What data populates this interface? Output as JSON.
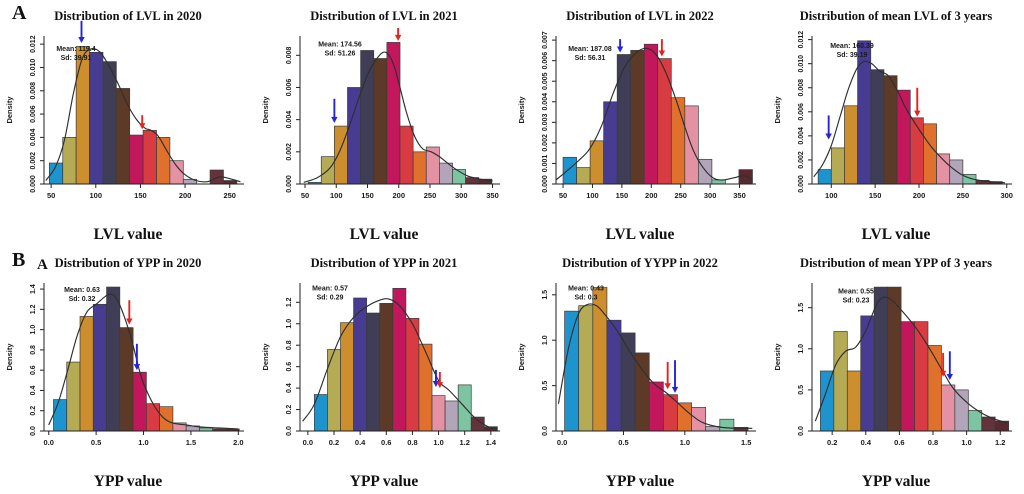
{
  "figure": {
    "row_a_label": "A",
    "row_b_label": "B",
    "sub_label_b": "A"
  },
  "colors": {
    "palette": [
      "#1e94cf",
      "#b5ab55",
      "#cd8e2e",
      "#473c92",
      "#403d56",
      "#5d3a28",
      "#c2175b",
      "#d93b43",
      "#e0712d",
      "#e492a3",
      "#b2a4b9",
      "#7cc4a2",
      "#63323a",
      "#5a2930"
    ],
    "curve": "#2f2f2f",
    "axis": "#222222",
    "bar_stroke": "#3b3b3b",
    "arrow_blue": "#2424d8",
    "arrow_red": "#e42320",
    "text": "#1a1a1a"
  },
  "chart_data": [
    {
      "type": "bar",
      "title": "Distribution of  LVL in 2020",
      "xlabel": "LVL value",
      "ylabel": "Density",
      "mean_label": "Mean: 119.4",
      "sd_label": "Sd: 39.91",
      "ann": [
        0.16,
        0.1
      ],
      "bin_start": 48,
      "bin_width": 15,
      "values": [
        0.0018,
        0.004,
        0.0118,
        0.0113,
        0.0105,
        0.0082,
        0.0042,
        0.0046,
        0.004,
        0.002,
        0.0004,
        0,
        0.0012,
        0.0003
      ],
      "xlim": [
        42,
        266
      ],
      "ylim": [
        0,
        0.0127
      ],
      "xticks": [
        50,
        100,
        150,
        200,
        250
      ],
      "xtick_labels": [
        "50",
        "100",
        "150",
        "200",
        "250"
      ],
      "yticks": [
        0,
        0.002,
        0.004,
        0.006,
        0.008,
        0.01,
        0.012
      ],
      "ytick_labels": [
        "0.000",
        "0.002",
        "0.004",
        "0.006",
        "0.008",
        "0.010",
        "0.012"
      ],
      "curve": [
        [
          44,
          0.0003
        ],
        [
          55,
          0.0015
        ],
        [
          65,
          0.0038
        ],
        [
          75,
          0.0078
        ],
        [
          85,
          0.0108
        ],
        [
          95,
          0.0116
        ],
        [
          105,
          0.0113
        ],
        [
          115,
          0.0101
        ],
        [
          125,
          0.0086
        ],
        [
          135,
          0.0069
        ],
        [
          145,
          0.0056
        ],
        [
          155,
          0.0048
        ],
        [
          162,
          0.0046
        ],
        [
          170,
          0.0041
        ],
        [
          180,
          0.0028
        ],
        [
          190,
          0.0016
        ],
        [
          200,
          0.0008
        ],
        [
          212,
          0.0003
        ],
        [
          225,
          0.0002
        ],
        [
          238,
          0.0006
        ],
        [
          248,
          0.0005
        ],
        [
          262,
          0.0002
        ]
      ],
      "arrows": [
        {
          "color": "blue",
          "x": 84,
          "y_from": 0.014,
          "y_to": 0.0121
        },
        {
          "color": "red",
          "x": 152,
          "y_from": 0.0059,
          "y_to": 0.0047
        }
      ]
    },
    {
      "type": "bar",
      "title": "Distribution of  LVL in 2021",
      "xlabel": "LVL value",
      "ylabel": "Density",
      "mean_label": "Mean: 174.56",
      "sd_label": "Sd: 51.26",
      "ann": [
        0.2,
        0.07
      ],
      "bin_start": 55,
      "bin_width": 21,
      "values": [
        0.0001,
        0.0017,
        0.0036,
        0.006,
        0.0083,
        0.0078,
        0.0088,
        0.0036,
        0.002,
        0.0023,
        0.0013,
        0.0009,
        0.0004,
        0.0003
      ],
      "xlim": [
        42,
        362
      ],
      "ylim": [
        0,
        0.0092
      ],
      "xticks": [
        50,
        100,
        150,
        200,
        250,
        300,
        350
      ],
      "xtick_labels": [
        "50",
        "100",
        "150",
        "200",
        "250",
        "300",
        "350"
      ],
      "yticks": [
        0,
        0.002,
        0.004,
        0.006,
        0.008
      ],
      "ytick_labels": [
        "0.000",
        "0.002",
        "0.004",
        "0.006",
        "0.008"
      ],
      "curve": [
        [
          48,
          0.0001
        ],
        [
          70,
          0.0004
        ],
        [
          90,
          0.001
        ],
        [
          105,
          0.002
        ],
        [
          120,
          0.0035
        ],
        [
          135,
          0.0052
        ],
        [
          150,
          0.0068
        ],
        [
          165,
          0.0078
        ],
        [
          178,
          0.0082
        ],
        [
          190,
          0.0076
        ],
        [
          200,
          0.0063
        ],
        [
          212,
          0.0045
        ],
        [
          225,
          0.003
        ],
        [
          238,
          0.0022
        ],
        [
          252,
          0.002
        ],
        [
          265,
          0.0017
        ],
        [
          278,
          0.0013
        ],
        [
          292,
          0.0009
        ],
        [
          310,
          0.0005
        ],
        [
          330,
          0.0003
        ],
        [
          350,
          0.0002
        ]
      ],
      "arrows": [
        {
          "color": "blue",
          "x": 97,
          "y_from": 0.0053,
          "y_to": 0.0038
        },
        {
          "color": "red",
          "x": 199,
          "y_from": 0.0097,
          "y_to": 0.0089
        }
      ]
    },
    {
      "type": "bar",
      "title": "Distribution of  LVL in 2022",
      "xlabel": "LVL value",
      "ylabel": "Density",
      "mean_label": "Mean: 187.08",
      "sd_label": "Sd: 56.31",
      "ann": [
        0.17,
        0.1
      ],
      "bin_start": 50,
      "bin_width": 23,
      "values": [
        0.0013,
        0.0008,
        0.0021,
        0.004,
        0.0063,
        0.0065,
        0.0068,
        0.0061,
        0.0042,
        0.0038,
        0.0012,
        0.0002,
        0,
        0.0007
      ],
      "xlim": [
        38,
        378
      ],
      "ylim": [
        0,
        0.0072
      ],
      "xticks": [
        50,
        100,
        150,
        200,
        250,
        300,
        350
      ],
      "xtick_labels": [
        "50",
        "100",
        "150",
        "200",
        "250",
        "300",
        "350"
      ],
      "yticks": [
        0,
        0.001,
        0.002,
        0.003,
        0.004,
        0.005,
        0.006,
        0.007
      ],
      "ytick_labels": [
        "0.000",
        "0.001",
        "0.002",
        "0.003",
        "0.004",
        "0.005",
        "0.006",
        "0.007"
      ],
      "curve": [
        [
          38,
          0.0002
        ],
        [
          55,
          0.0006
        ],
        [
          75,
          0.0011
        ],
        [
          95,
          0.0017
        ],
        [
          115,
          0.0028
        ],
        [
          135,
          0.0044
        ],
        [
          155,
          0.0057
        ],
        [
          175,
          0.0064
        ],
        [
          192,
          0.0066
        ],
        [
          208,
          0.0063
        ],
        [
          225,
          0.0054
        ],
        [
          242,
          0.0041
        ],
        [
          258,
          0.0027
        ],
        [
          272,
          0.0016
        ],
        [
          288,
          0.0008
        ],
        [
          305,
          0.0003
        ],
        [
          322,
          0.0002
        ],
        [
          340,
          0.0003
        ],
        [
          358,
          0.0004
        ],
        [
          372,
          0.0002
        ]
      ],
      "arrows": [
        {
          "color": "blue",
          "x": 147,
          "y_from": 0.00705,
          "y_to": 0.0064
        },
        {
          "color": "red",
          "x": 218,
          "y_from": 0.00705,
          "y_to": 0.0062
        }
      ]
    },
    {
      "type": "bar",
      "title": "Distribution of  mean LVL of 3 years",
      "xlabel": "LVL value",
      "ylabel": "Density",
      "mean_label": "Mean: 160.39",
      "sd_label": "Sd: 39.19",
      "ann": [
        0.2,
        0.08
      ],
      "bin_start": 85,
      "bin_width": 15,
      "values": [
        0.0012,
        0.003,
        0.0065,
        0.0119,
        0.0095,
        0.009,
        0.0078,
        0.0055,
        0.005,
        0.0025,
        0.002,
        0.0008,
        0.0003,
        0.0002
      ],
      "xlim": [
        78,
        306
      ],
      "ylim": [
        0,
        0.0123
      ],
      "xticks": [
        100,
        150,
        200,
        250,
        300
      ],
      "xtick_labels": [
        "100",
        "150",
        "200",
        "250",
        "300"
      ],
      "yticks": [
        0,
        0.002,
        0.004,
        0.006,
        0.008,
        0.01,
        0.012
      ],
      "ytick_labels": [
        "0.000",
        "0.002",
        "0.004",
        "0.006",
        "0.008",
        "0.010",
        "0.012"
      ],
      "curve": [
        [
          80,
          0.0006
        ],
        [
          90,
          0.0016
        ],
        [
          100,
          0.0032
        ],
        [
          110,
          0.0056
        ],
        [
          120,
          0.008
        ],
        [
          130,
          0.0097
        ],
        [
          138,
          0.0102
        ],
        [
          146,
          0.01
        ],
        [
          155,
          0.0094
        ],
        [
          165,
          0.009
        ],
        [
          175,
          0.0078
        ],
        [
          185,
          0.0063
        ],
        [
          195,
          0.0051
        ],
        [
          205,
          0.004
        ],
        [
          215,
          0.003
        ],
        [
          225,
          0.0022
        ],
        [
          235,
          0.0015
        ],
        [
          248,
          0.0008
        ],
        [
          262,
          0.0004
        ],
        [
          280,
          0.0002
        ],
        [
          298,
          0.0001
        ]
      ],
      "arrows": [
        {
          "color": "blue",
          "x": 97,
          "y_from": 0.0057,
          "y_to": 0.0037
        },
        {
          "color": "red",
          "x": 198,
          "y_from": 0.008,
          "y_to": 0.0056
        }
      ]
    },
    {
      "type": "bar",
      "title": "Distribution of YPP in 2020",
      "xlabel": "YPP value",
      "ylabel": "Density",
      "mean_label": "Mean: 0.63",
      "sd_label": "Sd: 0.32",
      "ann": [
        0.19,
        0.06
      ],
      "bin_start": 0.05,
      "bin_width": 0.14,
      "values": [
        0.31,
        0.68,
        1.13,
        1.25,
        1.42,
        1.02,
        0.58,
        0.27,
        0.24,
        0.08,
        0.05,
        0.03,
        0.02,
        0.02
      ],
      "xlim": [
        -0.05,
        2.06
      ],
      "ylim": [
        0,
        1.46
      ],
      "xticks": [
        0,
        0.5,
        1.0,
        1.5,
        2.0
      ],
      "xtick_labels": [
        "0.0",
        "0.5",
        "1.0",
        "1.5",
        "2.0"
      ],
      "yticks": [
        0,
        0.2,
        0.4,
        0.6,
        0.8,
        1.0,
        1.2,
        1.4
      ],
      "ytick_labels": [
        "0.0",
        "0.2",
        "0.4",
        "0.6",
        "0.8",
        "1.0",
        "1.2",
        "1.4"
      ],
      "curve": [
        [
          0.0,
          0.06
        ],
        [
          0.1,
          0.28
        ],
        [
          0.2,
          0.6
        ],
        [
          0.3,
          0.94
        ],
        [
          0.4,
          1.17
        ],
        [
          0.5,
          1.25
        ],
        [
          0.6,
          1.33
        ],
        [
          0.66,
          1.35
        ],
        [
          0.72,
          1.3
        ],
        [
          0.8,
          1.12
        ],
        [
          0.88,
          0.88
        ],
        [
          0.95,
          0.62
        ],
        [
          1.0,
          0.47
        ],
        [
          1.1,
          0.27
        ],
        [
          1.2,
          0.14
        ],
        [
          1.3,
          0.08
        ],
        [
          1.45,
          0.06
        ],
        [
          1.6,
          0.04
        ],
        [
          1.8,
          0.03
        ],
        [
          2.0,
          0.02
        ]
      ],
      "arrows": [
        {
          "color": "red",
          "x": 0.85,
          "y_from": 1.29,
          "y_to": 1.05
        },
        {
          "color": "blue",
          "x": 0.93,
          "y_from": 0.86,
          "y_to": 0.6
        }
      ]
    },
    {
      "type": "bar",
      "title": "Distribution of YPP in 2021",
      "xlabel": "YPP value",
      "ylabel": "Density",
      "mean_label": "Mean: 0.57",
      "sd_label": "Sd: 0.29",
      "ann": [
        0.15,
        0.05
      ],
      "bin_start": 0.05,
      "bin_width": 0.1,
      "values": [
        0.34,
        0.76,
        1.01,
        1.24,
        1.1,
        1.19,
        1.33,
        1.05,
        0.81,
        0.33,
        0.28,
        0.43,
        0.13,
        0.04
      ],
      "xlim": [
        -0.06,
        1.47
      ],
      "ylim": [
        0,
        1.38
      ],
      "xticks": [
        0,
        0.2,
        0.4,
        0.6,
        0.8,
        1.0,
        1.2,
        1.4
      ],
      "xtick_labels": [
        "0.0",
        "0.2",
        "0.4",
        "0.6",
        "0.8",
        "1.0",
        "1.2",
        "1.4"
      ],
      "yticks": [
        0,
        0.2,
        0.4,
        0.6,
        0.8,
        1.0,
        1.2
      ],
      "ytick_labels": [
        "0.0",
        "0.2",
        "0.4",
        "0.6",
        "0.8",
        "1.0",
        "1.2"
      ],
      "curve": [
        [
          -0.04,
          0.09
        ],
        [
          0.05,
          0.25
        ],
        [
          0.15,
          0.58
        ],
        [
          0.25,
          0.88
        ],
        [
          0.35,
          1.06
        ],
        [
          0.45,
          1.16
        ],
        [
          0.55,
          1.22
        ],
        [
          0.62,
          1.23
        ],
        [
          0.7,
          1.17
        ],
        [
          0.8,
          1.0
        ],
        [
          0.9,
          0.74
        ],
        [
          1.0,
          0.47
        ],
        [
          1.08,
          0.38
        ],
        [
          1.18,
          0.25
        ],
        [
          1.28,
          0.12
        ],
        [
          1.38,
          0.04
        ],
        [
          1.45,
          0.02
        ]
      ],
      "arrows": [
        {
          "color": "blue",
          "x": 0.98,
          "y_from": 0.57,
          "y_to": 0.41
        },
        {
          "color": "red",
          "x": 1.01,
          "y_from": 0.55,
          "y_to": 0.4
        }
      ]
    },
    {
      "type": "bar",
      "title": "Distribution of YYPP in 2022",
      "xlabel": "YPP value",
      "ylabel": "Density",
      "mean_label": "Mean: 0.43",
      "sd_label": "Sd: 0.3",
      "ann": [
        0.15,
        0.05
      ],
      "bin_start": 0.02,
      "bin_width": 0.115,
      "values": [
        1.32,
        1.38,
        1.58,
        1.22,
        1.08,
        0.86,
        0.54,
        0.4,
        0.31,
        0.26,
        0.05,
        0.13,
        0.04
      ],
      "xlim": [
        -0.05,
        1.58
      ],
      "ylim": [
        0,
        1.63
      ],
      "xticks": [
        0,
        0.5,
        1.0,
        1.5
      ],
      "xtick_labels": [
        "0.0",
        "0.5",
        "1.0",
        "1.5"
      ],
      "yticks": [
        0,
        0.5,
        1.0,
        1.5
      ],
      "ytick_labels": [
        "0.0",
        "0.5",
        "1.0",
        "1.5"
      ],
      "curve": [
        [
          -0.03,
          0.3
        ],
        [
          0.05,
          0.9
        ],
        [
          0.13,
          1.28
        ],
        [
          0.2,
          1.39
        ],
        [
          0.28,
          1.38
        ],
        [
          0.35,
          1.28
        ],
        [
          0.45,
          1.1
        ],
        [
          0.55,
          0.88
        ],
        [
          0.65,
          0.68
        ],
        [
          0.75,
          0.52
        ],
        [
          0.85,
          0.42
        ],
        [
          0.95,
          0.3
        ],
        [
          1.05,
          0.18
        ],
        [
          1.15,
          0.09
        ],
        [
          1.3,
          0.04
        ],
        [
          1.45,
          0.03
        ],
        [
          1.55,
          0.03
        ]
      ],
      "arrows": [
        {
          "color": "red",
          "x": 0.86,
          "y_from": 0.76,
          "y_to": 0.46
        },
        {
          "color": "blue",
          "x": 0.92,
          "y_from": 0.78,
          "y_to": 0.42
        }
      ]
    },
    {
      "type": "bar",
      "title": "Distribution of mean YPP of 3 years",
      "xlabel": "YPP value",
      "ylabel": "Density",
      "mean_label": "Mean: 0.55",
      "sd_label": "Sd: 0.23",
      "ann": [
        0.22,
        0.07
      ],
      "bin_start": 0.13,
      "bin_width": 0.08,
      "values": [
        0.73,
        1.21,
        0.73,
        1.4,
        1.75,
        1.75,
        1.33,
        1.33,
        1.04,
        0.56,
        0.5,
        0.25,
        0.17,
        0.12
      ],
      "xlim": [
        0.08,
        1.27
      ],
      "ylim": [
        0,
        1.8
      ],
      "xticks": [
        0.2,
        0.4,
        0.6,
        0.8,
        1.0,
        1.2
      ],
      "xtick_labels": [
        "0.2",
        "0.4",
        "0.6",
        "0.8",
        "1.0",
        "1.2"
      ],
      "yticks": [
        0,
        0.5,
        1.0,
        1.5
      ],
      "ytick_labels": [
        "0.0",
        "0.5",
        "1.0",
        "1.5"
      ],
      "curve": [
        [
          0.1,
          0.12
        ],
        [
          0.16,
          0.45
        ],
        [
          0.22,
          0.8
        ],
        [
          0.28,
          0.97
        ],
        [
          0.34,
          1.02
        ],
        [
          0.4,
          1.22
        ],
        [
          0.46,
          1.52
        ],
        [
          0.5,
          1.62
        ],
        [
          0.55,
          1.6
        ],
        [
          0.62,
          1.45
        ],
        [
          0.7,
          1.25
        ],
        [
          0.78,
          1.0
        ],
        [
          0.86,
          0.72
        ],
        [
          0.92,
          0.52
        ],
        [
          1.0,
          0.35
        ],
        [
          1.08,
          0.23
        ],
        [
          1.16,
          0.15
        ],
        [
          1.24,
          0.1
        ]
      ],
      "arrows": [
        {
          "color": "red",
          "x": 0.86,
          "y_from": 0.95,
          "y_to": 0.66
        },
        {
          "color": "blue",
          "x": 0.9,
          "y_from": 0.97,
          "y_to": 0.62
        }
      ]
    }
  ]
}
